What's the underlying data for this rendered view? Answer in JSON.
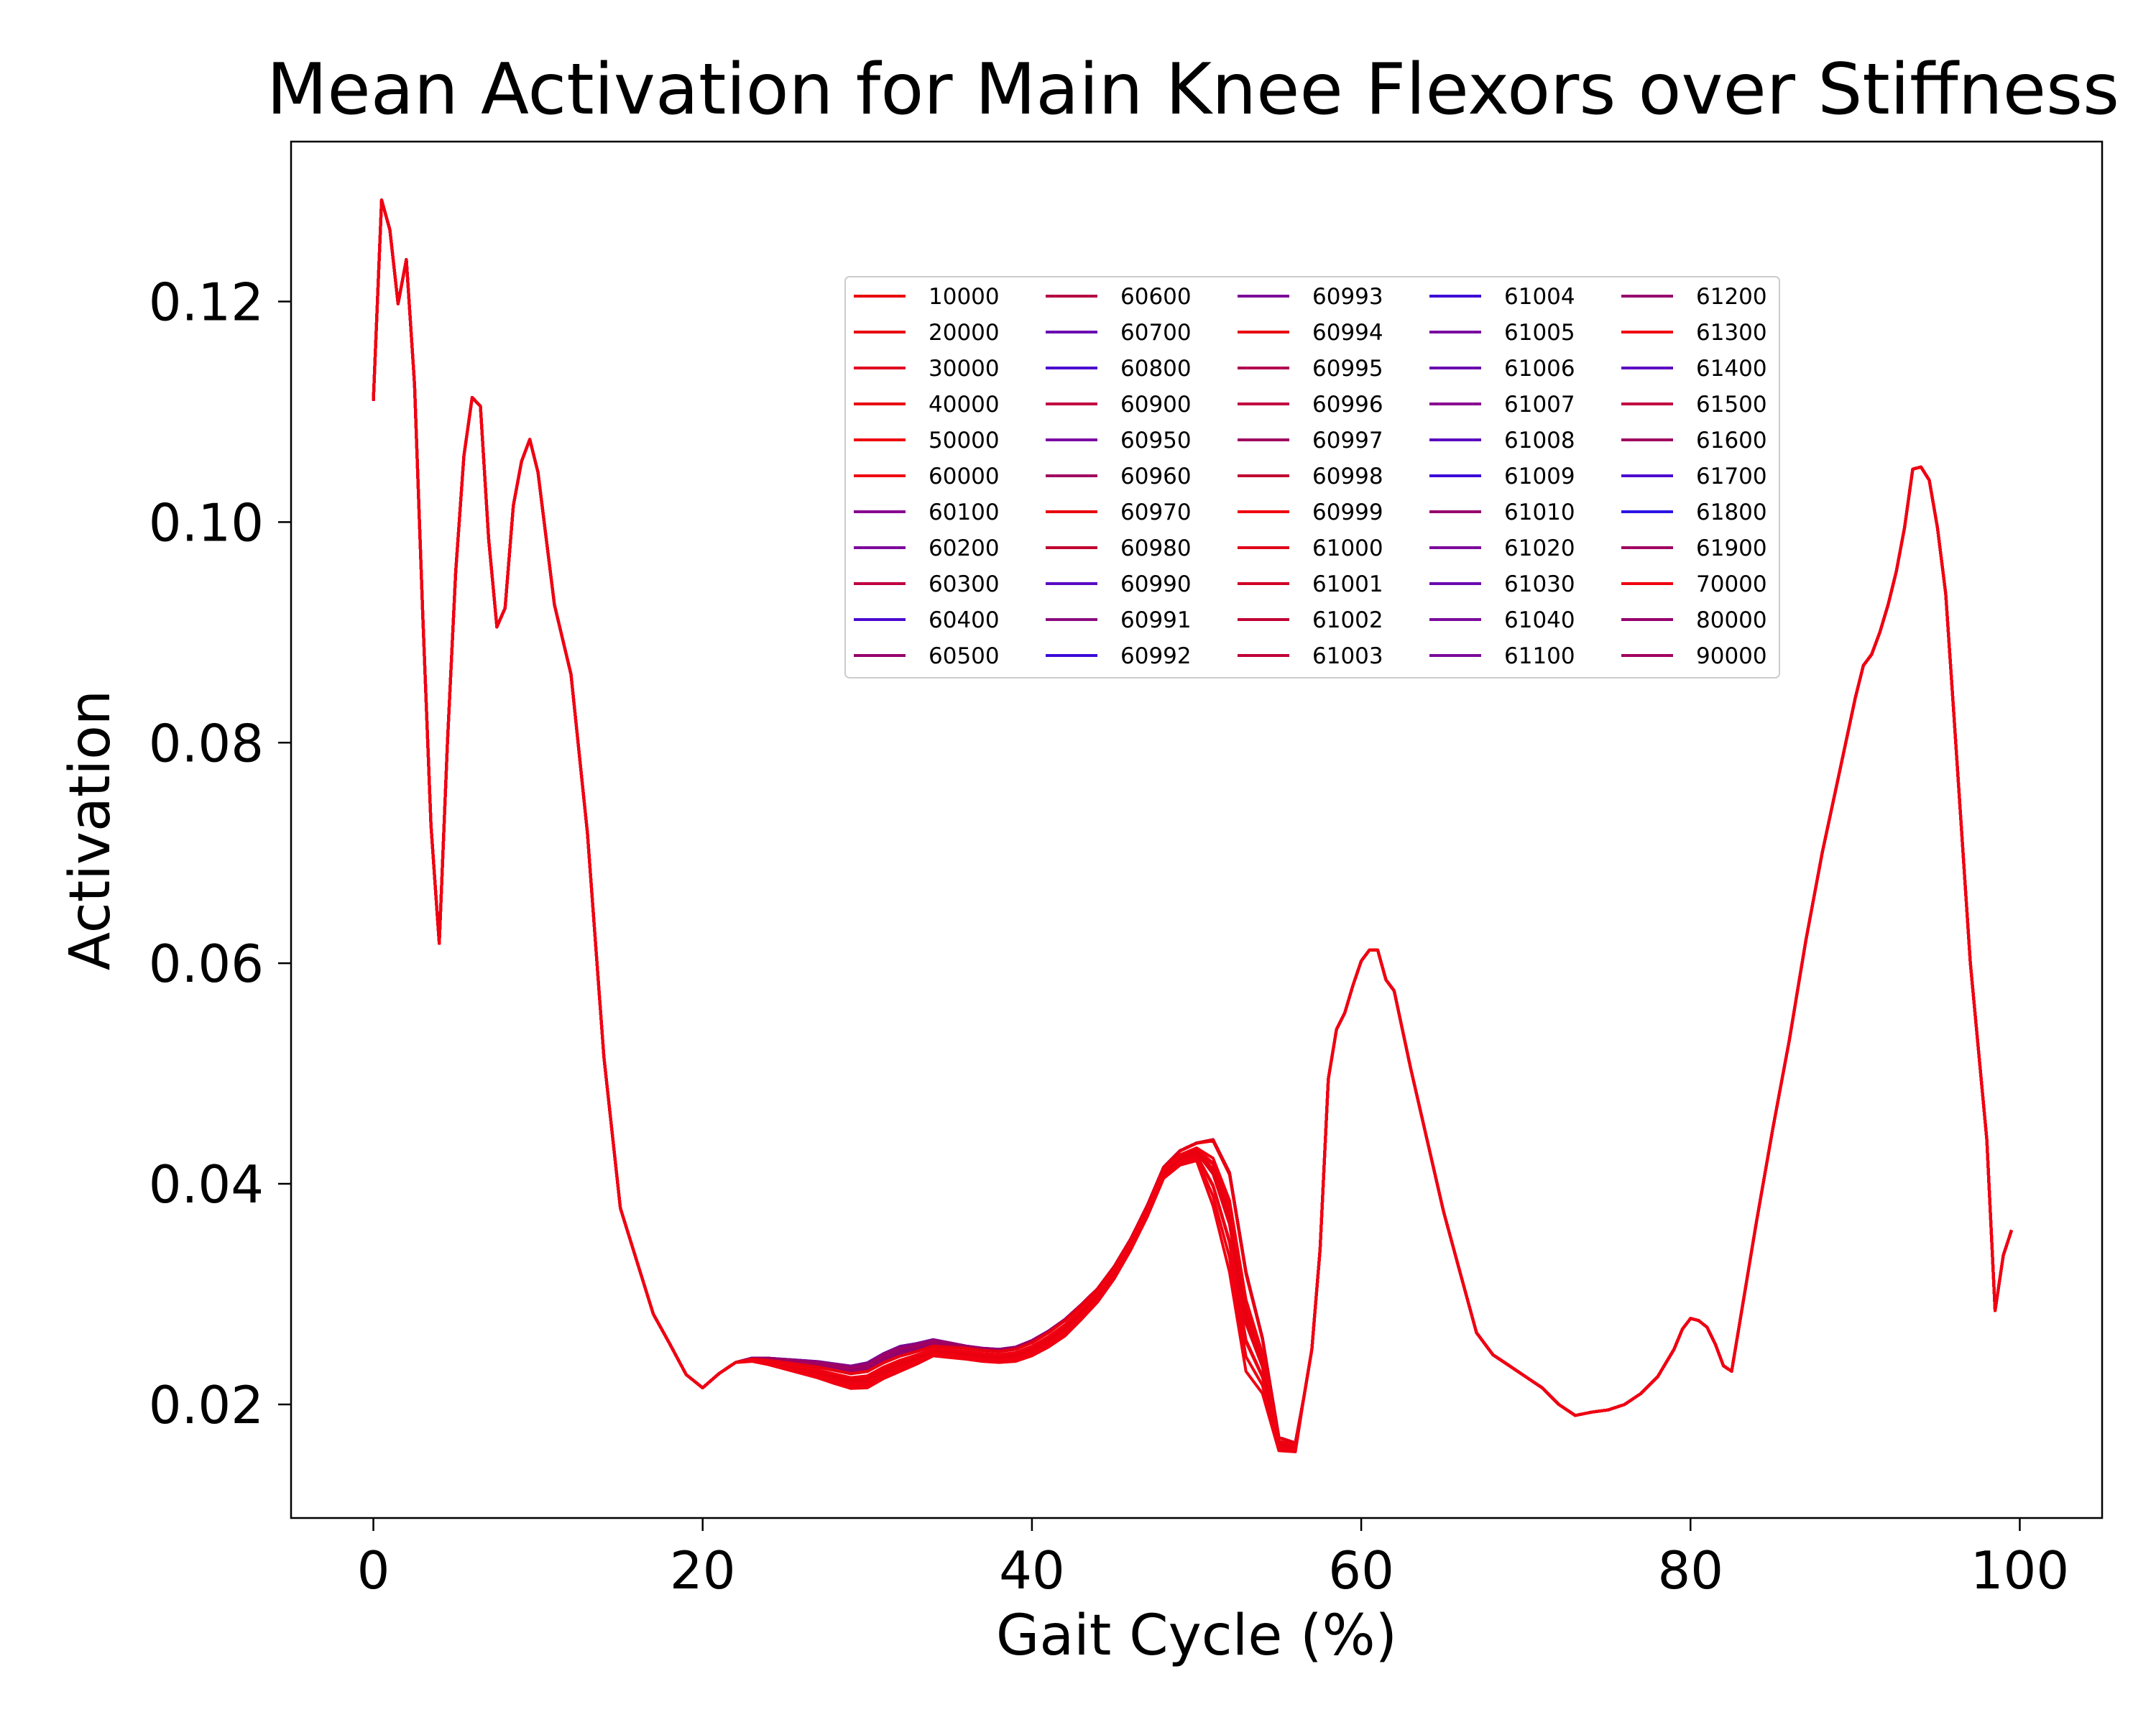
{
  "chart_data": {
    "type": "line",
    "title": "Mean Activation for Main Knee Flexors over Stiffness",
    "xlabel": "Gait Cycle (%)",
    "ylabel": "Activation",
    "xlim": [
      -5,
      105
    ],
    "ylim": [
      0.0097,
      0.1345
    ],
    "xticks": [
      0,
      20,
      40,
      60,
      80,
      100
    ],
    "yticks": [
      0.02,
      0.04,
      0.06,
      0.08,
      0.1,
      0.12
    ],
    "xtick_labels": [
      "0",
      "20",
      "40",
      "60",
      "80",
      "100"
    ],
    "ytick_labels": [
      "0.02",
      "0.04",
      "0.06",
      "0.08",
      "0.10",
      "0.12"
    ],
    "grid": false,
    "legend": {
      "placement": "upper center",
      "columns": 5,
      "entries": [
        "10000",
        "20000",
        "30000",
        "40000",
        "50000",
        "60000",
        "60100",
        "60200",
        "60300",
        "60400",
        "60500",
        "60600",
        "60700",
        "60800",
        "60900",
        "60950",
        "60960",
        "60970",
        "60980",
        "60990",
        "60991",
        "60992",
        "60993",
        "60994",
        "60995",
        "60996",
        "60997",
        "60998",
        "60999",
        "61000",
        "61001",
        "61002",
        "61003",
        "61004",
        "61005",
        "61006",
        "61007",
        "61008",
        "61009",
        "61010",
        "61020",
        "61030",
        "61040",
        "61100",
        "61200",
        "61300",
        "61400",
        "61500",
        "61600",
        "61700",
        "61800",
        "61900",
        "70000",
        "80000",
        "90000"
      ],
      "colors": [
        "#e8000f",
        "#e8000f",
        "#e0001f",
        "#e8000f",
        "#ee0010",
        "#ee0010",
        "#880090",
        "#7c0a9c",
        "#c00040",
        "#4b0ad0",
        "#96006c",
        "#b40040",
        "#6a0ab0",
        "#4c0ad0",
        "#c00040",
        "#7c0aa4",
        "#a00060",
        "#e8000f",
        "#c00030",
        "#5a0ac4",
        "#8c0a80",
        "#3c0ad8",
        "#7c0a98",
        "#e8000f",
        "#b00050",
        "#c00040",
        "#a00060",
        "#c00030",
        "#f00010",
        "#e0001a",
        "#d00024",
        "#c00034",
        "#c00038",
        "#3c0ad8",
        "#7a0aa0",
        "#6a0ab0",
        "#880090",
        "#5a0ac0",
        "#3c0ad8",
        "#96006c",
        "#7c0a9c",
        "#6a0ab0",
        "#7c0a9c",
        "#7c0a9c",
        "#96006c",
        "#f00010",
        "#5a0ac0",
        "#c00040",
        "#a00060",
        "#4c0ad0",
        "#2c14e4",
        "#a00060",
        "#f00010",
        "#96006c",
        "#a00060"
      ]
    },
    "base_series": {
      "x": [
        0,
        0.5,
        1,
        1.5,
        2,
        2.5,
        3,
        3.5,
        4,
        4.5,
        5,
        5.5,
        6,
        6.5,
        7,
        7.5,
        8,
        8.5,
        9,
        9.5,
        10,
        11,
        12,
        13,
        14,
        15,
        16,
        17,
        18,
        19,
        20,
        21,
        22,
        23,
        24,
        25,
        26,
        27,
        28,
        29,
        30,
        31,
        32,
        33,
        34,
        35,
        36,
        37,
        38,
        39,
        40,
        41,
        42,
        43,
        44,
        45,
        46,
        47,
        48,
        49,
        50,
        51,
        52,
        53,
        54,
        55,
        56,
        56.5,
        57,
        57.5,
        58,
        58.5,
        59,
        59.5,
        60,
        60.5,
        61,
        61.5,
        62,
        63,
        64,
        65,
        66,
        67,
        68,
        69,
        70,
        71,
        72,
        73,
        74,
        75,
        76,
        77,
        78,
        79,
        79.5,
        80,
        80.5,
        81,
        81.5,
        82,
        82.5,
        83,
        84,
        85,
        86,
        87,
        88,
        89,
        90,
        90.5,
        91,
        91.5,
        92,
        92.5,
        93,
        93.5,
        94,
        94.5,
        95,
        95.5,
        96,
        97,
        98,
        98.5,
        99,
        99.5
      ],
      "y": [
        0.111,
        0.1292,
        0.1265,
        0.1198,
        0.1238,
        0.1125,
        0.0915,
        0.0725,
        0.0618,
        0.08,
        0.0955,
        0.106,
        0.1113,
        0.1105,
        0.0985,
        0.0905,
        0.0922,
        0.1015,
        0.1055,
        0.1075,
        0.1045,
        0.0925,
        0.0862,
        0.0718,
        0.0515,
        0.0378,
        0.033,
        0.0282,
        0.0255,
        0.0227,
        0.0215,
        0.0228,
        0.0238,
        0.0241,
        0.024,
        0.0238,
        0.0236,
        0.0234,
        0.0231,
        0.0228,
        0.023,
        0.0238,
        0.0244,
        0.0248,
        0.0253,
        0.0252,
        0.0251,
        0.0249,
        0.0248,
        0.025,
        0.0256,
        0.0265,
        0.0276,
        0.029,
        0.0305,
        0.0325,
        0.035,
        0.038,
        0.0415,
        0.043,
        0.0437,
        0.044,
        0.041,
        0.032,
        0.026,
        0.017,
        0.0165,
        0.0205,
        0.025,
        0.034,
        0.0495,
        0.054,
        0.0555,
        0.058,
        0.0602,
        0.0612,
        0.0612,
        0.0585,
        0.0575,
        0.0505,
        0.044,
        0.0375,
        0.032,
        0.0265,
        0.0245,
        0.0235,
        0.0225,
        0.0215,
        0.02,
        0.019,
        0.0193,
        0.0195,
        0.02,
        0.021,
        0.0225,
        0.025,
        0.0268,
        0.0278,
        0.0276,
        0.027,
        0.0255,
        0.0235,
        0.023,
        0.0275,
        0.0365,
        0.045,
        0.053,
        0.062,
        0.07,
        0.077,
        0.084,
        0.087,
        0.088,
        0.09,
        0.0925,
        0.0955,
        0.0995,
        0.1048,
        0.105,
        0.1038,
        0.0995,
        0.0935,
        0.0825,
        0.06,
        0.044,
        0.0285,
        0.0335,
        0.0358
      ]
    },
    "bundle": {
      "x": [
        22,
        24,
        26,
        28,
        30,
        32,
        34,
        36,
        38,
        40,
        42,
        44,
        46,
        48,
        50,
        51,
        52,
        53,
        54,
        55,
        56
      ],
      "offsets_high": [
        0,
        0.0002,
        0.0004,
        0.0006,
        0.0008,
        0.0009,
        0.0006,
        0.0002,
        0.0002,
        0.0002,
        0.0001,
        0,
        0,
        0,
        0,
        0,
        0,
        0,
        0,
        0,
        0
      ],
      "offsets_low": [
        0,
        -0.0004,
        -0.0008,
        -0.0012,
        -0.0015,
        -0.0014,
        -0.0009,
        -0.001,
        -0.001,
        -0.0012,
        -0.0014,
        -0.0012,
        -0.001,
        -0.001,
        -0.0016,
        -0.006,
        -0.009,
        -0.009,
        -0.005,
        -0.0012,
        -0.0008
      ]
    }
  }
}
